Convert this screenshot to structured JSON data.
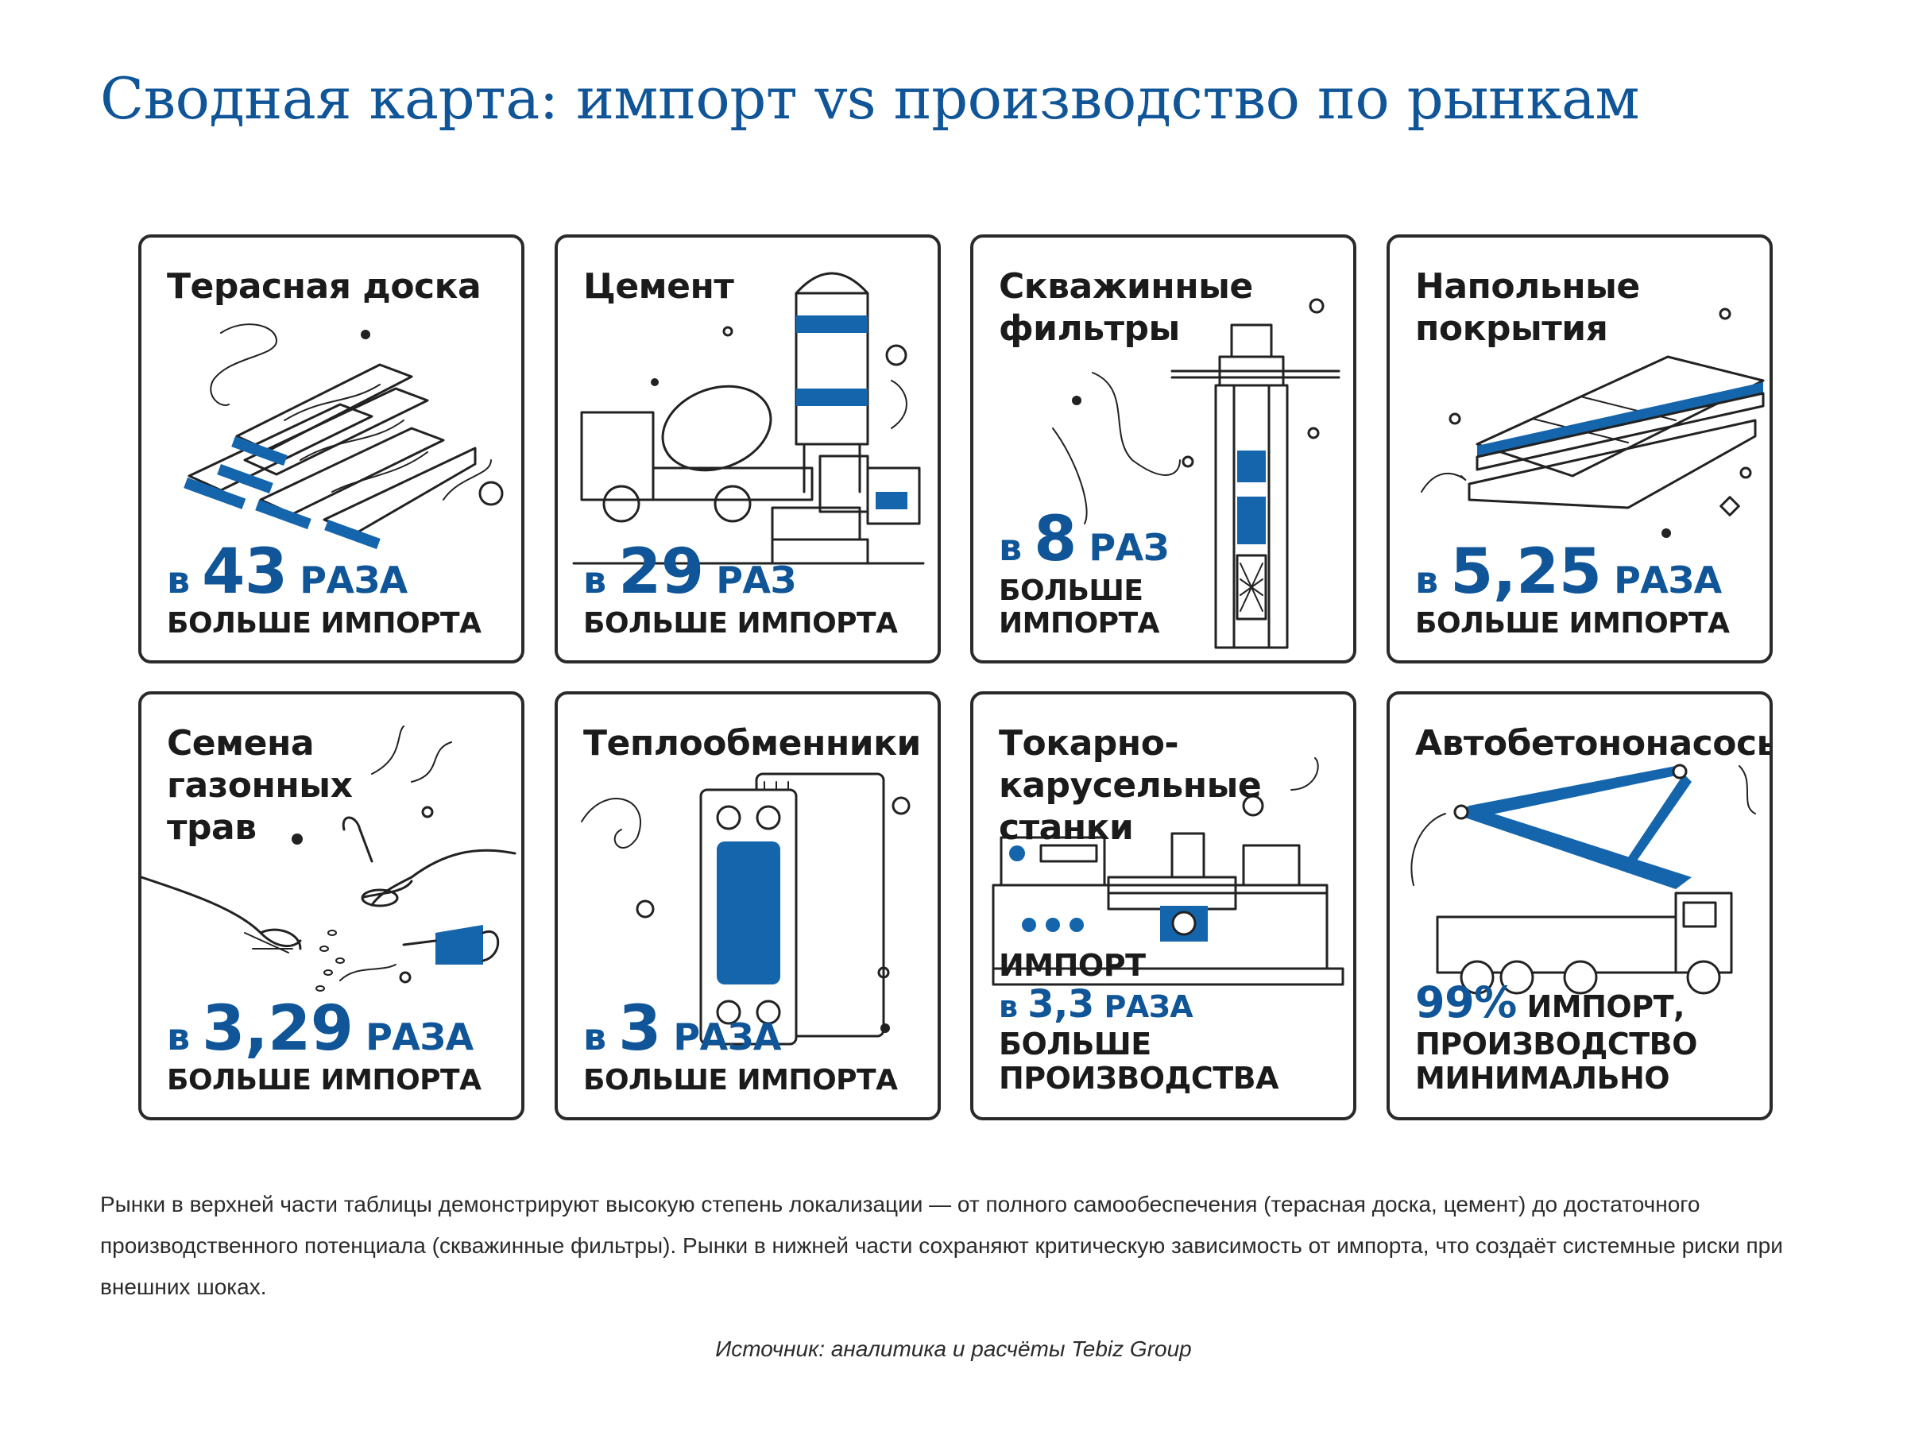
{
  "title": "Сводная карта: импорт vs производство по рынкам",
  "accent_color": "#0f5597",
  "cards": [
    {
      "name": "Терасная доска",
      "prefix": "в",
      "value": "43",
      "unit": "РАЗА",
      "sub": "БОЛЬШЕ ИМПОРТА",
      "icon": "boards-icon"
    },
    {
      "name": "Цемент",
      "prefix": "в",
      "value": "29",
      "unit": "РАЗ",
      "sub": "БОЛЬШЕ ИМПОРТА",
      "icon": "cement-truck-icon"
    },
    {
      "name": "Скважинные фильтры",
      "prefix": "в",
      "value": "8",
      "unit": "РАЗ",
      "sub": "БОЛЬШЕ ИМПОРТА",
      "icon": "well-filter-icon"
    },
    {
      "name": "Напольные покрытия",
      "prefix": "в",
      "value": "5,25",
      "unit": "РАЗА",
      "sub": "БОЛЬШЕ ИМПОРТА",
      "icon": "flooring-icon"
    },
    {
      "name": "Семена газонных трав",
      "prefix": "в",
      "value": "3,29",
      "unit": "РАЗА",
      "sub": "БОЛЬШЕ ИМПОРТА",
      "icon": "seeds-hands-icon"
    },
    {
      "name": "Теплообменники",
      "prefix": "в",
      "value": "3",
      "unit": "РАЗА",
      "sub": "БОЛЬШЕ ИМПОРТА",
      "icon": "heat-exchanger-icon"
    },
    {
      "name": "Токарно-карусельные станки",
      "line1": "ИМПОРТ",
      "prefix": "в",
      "value": "3,3",
      "unit": "РАЗА",
      "rest": "БОЛЬШЕ",
      "line3": "ПРОИЗВОДСТВА",
      "icon": "lathe-icon"
    },
    {
      "name": "Автобетононасосы",
      "value": "99%",
      "line1_rest": "ИМПОРТ,",
      "line2": "ПРОИЗВОДСТВО",
      "line3": "МИНИМАЛЬНО",
      "icon": "concrete-pump-icon"
    }
  ],
  "description": "Рынки в верхней части таблицы демонстрируют высокую степень локализации — от полного самообеспечения (терасная доска, цемент) до достаточного производственного потенциала (скважинные фильтры). Рынки в нижней части сохраняют критическую зависимость от импорта, что создаёт системные риски при внешних шоках.",
  "source": "Источник: аналитика и расчёты Tebiz Group"
}
